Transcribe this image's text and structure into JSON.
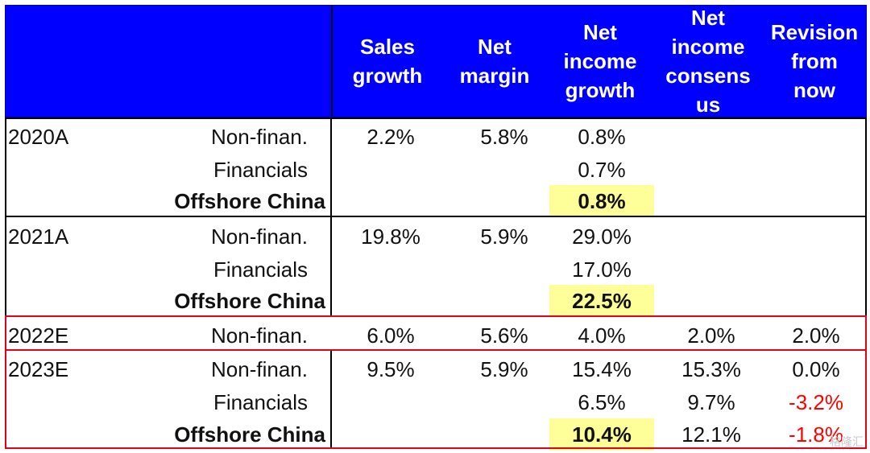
{
  "header": {
    "sales_growth": "Sales\ngrowth",
    "net_margin": "Net\nmargin",
    "net_income_growth": "Net\nincome\ngrowth",
    "net_income_consensus": "Net\nincome\nconsens\nus",
    "revision_from_now": "Revision\nfrom\nnow"
  },
  "rows": [
    {
      "year": "2020A",
      "segment": "Non-finan.",
      "sales": "2.2%",
      "margin": "5.8%",
      "ni": "0.8%",
      "cons": "",
      "rev": ""
    },
    {
      "year": "",
      "segment": "Financials",
      "sales": "",
      "margin": "",
      "ni": "0.7%",
      "cons": "",
      "rev": ""
    },
    {
      "year": "",
      "segment": "Offshore China",
      "sales": "",
      "margin": "",
      "ni": "0.8%",
      "cons": "",
      "rev": ""
    },
    {
      "year": "2021A",
      "segment": "Non-finan.",
      "sales": "19.8%",
      "margin": "5.9%",
      "ni": "29.0%",
      "cons": "",
      "rev": ""
    },
    {
      "year": "",
      "segment": "Financials",
      "sales": "",
      "margin": "",
      "ni": "17.0%",
      "cons": "",
      "rev": ""
    },
    {
      "year": "",
      "segment": "Offshore China",
      "sales": "",
      "margin": "",
      "ni": "22.5%",
      "cons": "",
      "rev": ""
    },
    {
      "year": "2022E",
      "segment": "Non-finan.",
      "sales": "6.0%",
      "margin": "5.6%",
      "ni": "4.0%",
      "cons": "2.0%",
      "rev": "2.0%"
    },
    {
      "year": "2023E",
      "segment": "Non-finan.",
      "sales": "9.5%",
      "margin": "5.9%",
      "ni": "15.4%",
      "cons": "15.3%",
      "rev": "0.0%"
    },
    {
      "year": "",
      "segment": "Financials",
      "sales": "",
      "margin": "",
      "ni": "6.5%",
      "cons": "9.7%",
      "rev": "-3.2%"
    },
    {
      "year": "",
      "segment": "Offshore China",
      "sales": "",
      "margin": "",
      "ni": "10.4%",
      "cons": "12.1%",
      "rev": "-1.8%"
    }
  ],
  "watermark": "格隆汇",
  "colors": {
    "header_bg": "#0000ff",
    "highlight": "#ffff99",
    "negative": "#ff0000",
    "box": "#e3001b"
  }
}
